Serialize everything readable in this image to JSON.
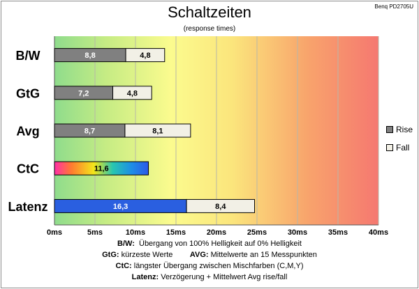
{
  "badge": "Benq PD2705U",
  "colors": {
    "rise": "#808080",
    "fall": "#f2f0e6",
    "latency": "#2a5fe0"
  },
  "chart_data": {
    "type": "bar",
    "orientation": "horizontal",
    "stacked": true,
    "title": "Schaltzeiten",
    "subtitle": "(response times)",
    "categories": [
      "B/W",
      "GtG",
      "Avg",
      "CtC",
      "Latenz"
    ],
    "series": [
      {
        "name": "Rise",
        "values": [
          8.8,
          7.2,
          8.7,
          11.6,
          16.3
        ]
      },
      {
        "name": "Fall",
        "values": [
          4.8,
          4.8,
          8.1,
          null,
          8.4
        ]
      }
    ],
    "value_labels": {
      "Rise": [
        "8,8",
        "7,2",
        "8,7",
        "11,6",
        "16,3"
      ],
      "Fall": [
        "4,8",
        "4,8",
        "8,1",
        "",
        "8,4"
      ]
    },
    "xticks": [
      "0ms",
      "5ms",
      "10ms",
      "15ms",
      "20ms",
      "25ms",
      "30ms",
      "35ms",
      "40ms"
    ],
    "xlim": [
      0,
      40
    ],
    "grid": true,
    "legend": "right",
    "background": "gradient green-yellow-red"
  },
  "notes": [
    {
      "items": [
        {
          "key": "B/W:",
          "text": "Übergang von 100% Helligkeit auf 0% Helligkeit"
        }
      ]
    },
    {
      "items": [
        {
          "key": "GtG:",
          "text": "kürzeste  Werte"
        },
        {
          "key": "AVG:",
          "text": "Mittelwerte  an 15 Messpunkten"
        }
      ]
    },
    {
      "items": [
        {
          "key": "CtC:",
          "text": "längster Übergang zwischen Mischfarben (C,M,Y)"
        }
      ]
    },
    {
      "items": [
        {
          "key": "Latenz:",
          "text": "Verzögerung  + Mittelwert Avg rise/fall"
        }
      ]
    }
  ]
}
